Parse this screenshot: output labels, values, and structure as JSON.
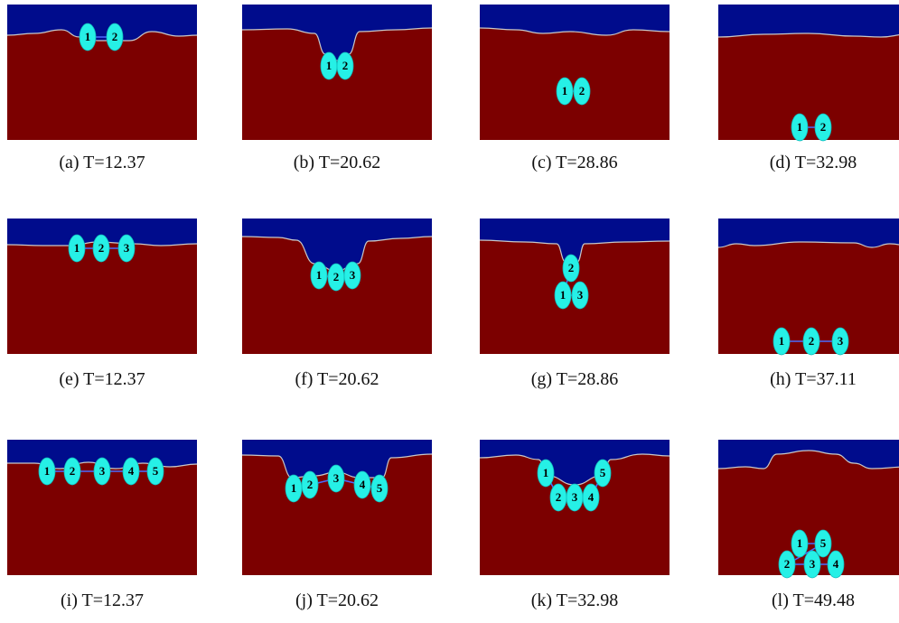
{
  "panels": [
    {
      "caption": "(a) T=12.37",
      "particles": [
        "1",
        "2"
      ]
    },
    {
      "caption": "(b) T=20.62",
      "particles": [
        "1",
        "2"
      ]
    },
    {
      "caption": "(c) T=28.86",
      "particles": [
        "1",
        "2"
      ]
    },
    {
      "caption": "(d) T=32.98",
      "particles": [
        "1",
        "2"
      ]
    },
    {
      "caption": "(e) T=12.37",
      "particles": [
        "1",
        "2",
        "3"
      ]
    },
    {
      "caption": "(f) T=20.62",
      "particles": [
        "1",
        "2",
        "3"
      ]
    },
    {
      "caption": "(g) T=28.86",
      "particles": [
        "2",
        "1",
        "3"
      ]
    },
    {
      "caption": "(h) T=37.11",
      "particles": [
        "1",
        "2",
        "3"
      ]
    },
    {
      "caption": "(i) T=12.37",
      "particles": [
        "1",
        "2",
        "3",
        "4",
        "5"
      ]
    },
    {
      "caption": "(j) T=20.62",
      "particles": [
        "1",
        "2",
        "3",
        "4",
        "5"
      ]
    },
    {
      "caption": "(k) T=32.98",
      "particles": [
        "1",
        "2",
        "3",
        "4",
        "5"
      ]
    },
    {
      "caption": "(l) T=49.48",
      "particles": [
        "1",
        "5",
        "2",
        "3",
        "4"
      ]
    }
  ]
}
